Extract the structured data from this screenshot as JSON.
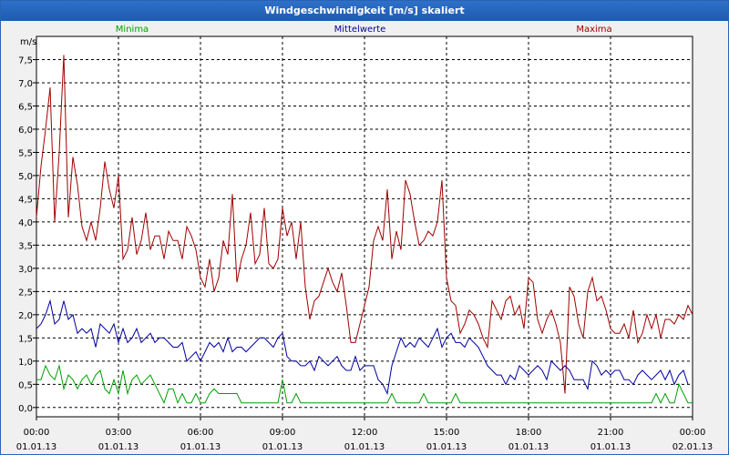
{
  "window": {
    "title": "Windgeschwindigkeit [m/s] skaliert"
  },
  "chart_data": {
    "type": "line",
    "title": "Windgeschwindigkeit [m/s] skaliert",
    "ylabel": "m/s",
    "ylim": [
      -0.2,
      8.0
    ],
    "xlim": [
      0,
      144
    ],
    "grid": true,
    "legend": "top",
    "y_ticks": [
      "0,0",
      "0,5",
      "1,0",
      "1,5",
      "2,0",
      "2,5",
      "3,0",
      "3,5",
      "4,0",
      "4,5",
      "5,0",
      "5,5",
      "6,0",
      "6,5",
      "7,0",
      "7,5"
    ],
    "y_tick_values": [
      0,
      0.5,
      1,
      1.5,
      2,
      2.5,
      3,
      3.5,
      4,
      4.5,
      5,
      5.5,
      6,
      6.5,
      7,
      7.5
    ],
    "x_ticks": [
      {
        "time": "00:00",
        "date": "01.01.13"
      },
      {
        "time": "03:00",
        "date": "01.01.13"
      },
      {
        "time": "06:00",
        "date": "01.01.13"
      },
      {
        "time": "09:00",
        "date": "01.01.13"
      },
      {
        "time": "12:00",
        "date": "01.01.13"
      },
      {
        "time": "15:00",
        "date": "01.01.13"
      },
      {
        "time": "18:00",
        "date": "01.01.13"
      },
      {
        "time": "21:00",
        "date": "01.01.13"
      },
      {
        "time": "00:00",
        "date": "02.01.13"
      }
    ],
    "series": [
      {
        "name": "Minima",
        "color": "#00a000",
        "values": [
          0.6,
          0.6,
          0.9,
          0.7,
          0.6,
          0.9,
          0.4,
          0.7,
          0.6,
          0.4,
          0.6,
          0.7,
          0.5,
          0.7,
          0.8,
          0.4,
          0.3,
          0.6,
          0.3,
          0.8,
          0.3,
          0.6,
          0.7,
          0.5,
          0.6,
          0.7,
          0.5,
          0.3,
          0.1,
          0.4,
          0.4,
          0.1,
          0.3,
          0.1,
          0.1,
          0.3,
          0.1,
          0.1,
          0.3,
          0.4,
          0.3,
          0.3,
          0.3,
          0.3,
          0.3,
          0.1,
          0.1,
          0.1,
          0.1,
          0.1,
          0.1,
          0.1,
          0.1,
          0.1,
          0.6,
          0.1,
          0.1,
          0.3,
          0.1,
          0.1,
          0.1,
          0.1,
          0.1,
          0.1,
          0.1,
          0.1,
          0.1,
          0.1,
          0.1,
          0.1,
          0.1,
          0.1,
          0.1,
          0.1,
          0.1,
          0.1,
          0.1,
          0.1,
          0.3,
          0.1,
          0.1,
          0.1,
          0.1,
          0.1,
          0.1,
          0.3,
          0.1,
          0.1,
          0.1,
          0.1,
          0.1,
          0.1,
          0.3,
          0.1,
          0.1,
          0.1,
          0.1,
          0.1,
          0.1,
          0.1,
          0.1,
          0.1,
          0.1,
          0.1,
          0.1,
          0.1,
          0.1,
          0.1,
          0.1,
          0.1,
          0.1,
          0.1,
          0.1,
          0.1,
          0.1,
          0.1,
          0.1,
          0.1,
          0.1,
          0.1,
          0.1,
          0.1,
          0.1,
          0.1,
          0.1,
          0.1,
          0.1,
          0.1,
          0.1,
          0.1,
          0.1,
          0.1,
          0.1,
          0.1,
          0.1,
          0.1,
          0.3,
          0.1,
          0.3,
          0.1,
          0.1,
          0.5,
          0.3,
          0.1,
          0.1
        ]
      },
      {
        "name": "Mittelwerte",
        "color": "#0000a0",
        "values": [
          1.7,
          1.8,
          2.0,
          2.3,
          1.8,
          1.9,
          2.3,
          1.9,
          2.0,
          1.6,
          1.7,
          1.6,
          1.7,
          1.3,
          1.8,
          1.7,
          1.6,
          1.8,
          1.4,
          1.7,
          1.4,
          1.5,
          1.7,
          1.4,
          1.5,
          1.6,
          1.4,
          1.5,
          1.5,
          1.4,
          1.3,
          1.3,
          1.4,
          1.0,
          1.1,
          1.2,
          1.0,
          1.2,
          1.4,
          1.3,
          1.4,
          1.2,
          1.5,
          1.2,
          1.3,
          1.3,
          1.2,
          1.3,
          1.4,
          1.5,
          1.5,
          1.4,
          1.3,
          1.5,
          1.6,
          1.1,
          1.0,
          1.0,
          0.9,
          0.9,
          1.0,
          0.8,
          1.1,
          1.0,
          0.9,
          1.0,
          1.1,
          0.9,
          0.8,
          0.8,
          1.1,
          0.8,
          0.9,
          0.9,
          0.9,
          0.6,
          0.5,
          0.3,
          0.9,
          1.2,
          1.5,
          1.3,
          1.4,
          1.3,
          1.5,
          1.4,
          1.3,
          1.5,
          1.7,
          1.3,
          1.5,
          1.6,
          1.4,
          1.4,
          1.3,
          1.5,
          1.4,
          1.3,
          1.1,
          0.9,
          0.8,
          0.7,
          0.7,
          0.5,
          0.7,
          0.6,
          0.9,
          0.8,
          0.7,
          0.8,
          0.9,
          0.8,
          0.6,
          1.0,
          0.9,
          0.8,
          0.9,
          0.8,
          0.6,
          0.6,
          0.6,
          0.4,
          1.0,
          0.9,
          0.7,
          0.8,
          0.7,
          0.8,
          0.8,
          0.6,
          0.6,
          0.5,
          0.7,
          0.8,
          0.7,
          0.6,
          0.7,
          0.8,
          0.6,
          0.8,
          0.5,
          0.7,
          0.8,
          0.5
        ]
      },
      {
        "name": "Maxima",
        "color": "#a00000",
        "values": [
          4.1,
          5.2,
          6.0,
          6.9,
          4.0,
          5.5,
          7.6,
          4.1,
          5.4,
          4.8,
          3.9,
          3.6,
          4.0,
          3.6,
          4.3,
          5.3,
          4.7,
          4.3,
          5.0,
          3.2,
          3.4,
          4.1,
          3.3,
          3.6,
          4.2,
          3.4,
          3.7,
          3.7,
          3.2,
          3.8,
          3.6,
          3.6,
          3.2,
          3.9,
          3.7,
          3.4,
          2.8,
          2.6,
          3.2,
          2.5,
          2.8,
          3.6,
          3.3,
          4.6,
          2.7,
          3.2,
          3.5,
          4.2,
          3.1,
          3.3,
          4.3,
          3.1,
          3.0,
          3.2,
          4.3,
          3.7,
          4.0,
          3.2,
          4.0,
          2.6,
          1.9,
          2.3,
          2.4,
          2.7,
          3.0,
          2.7,
          2.5,
          2.9,
          2.2,
          1.4,
          1.4,
          1.8,
          2.2,
          2.6,
          3.6,
          3.9,
          3.6,
          4.7,
          3.2,
          3.8,
          3.4,
          4.9,
          4.6,
          4.0,
          3.5,
          3.6,
          3.8,
          3.7,
          4.0,
          4.9,
          2.8,
          2.3,
          2.2,
          1.6,
          1.8,
          2.1,
          2.0,
          1.8,
          1.5,
          1.3,
          2.3,
          2.1,
          1.9,
          2.3,
          2.4,
          2.0,
          2.2,
          1.7,
          2.8,
          2.7,
          1.9,
          1.6,
          1.9,
          2.1,
          1.8,
          1.4,
          0.3,
          2.6,
          2.4,
          1.8,
          1.5,
          2.5,
          2.8,
          2.3,
          2.4,
          2.1,
          1.7,
          1.6,
          1.6,
          1.8,
          1.5,
          2.1,
          1.4,
          1.6,
          2.0,
          1.7,
          2.0,
          1.5,
          1.9,
          1.9,
          1.8,
          2.0,
          1.9,
          2.2,
          2.0
        ]
      }
    ]
  }
}
